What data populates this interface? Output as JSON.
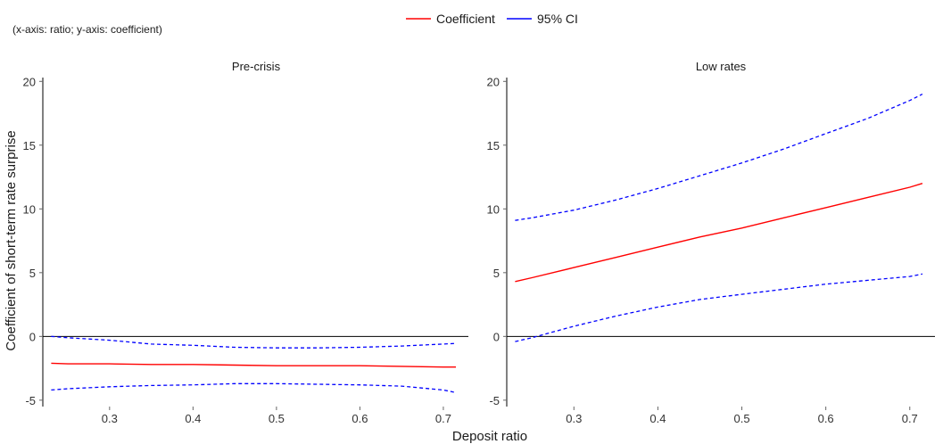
{
  "note": "(x-axis: ratio; y-axis: coefficient)",
  "colors": {
    "coefficient": "#ff0000",
    "ci": "#0000ff",
    "zero_line": "#000000"
  },
  "chart_data": {
    "type": "line",
    "xlabel": "Deposit ratio",
    "ylabel": "Coefficient of short-term rate surprise",
    "legend": {
      "placement": "top-center",
      "entries": [
        "Coefficient",
        "95% CI"
      ]
    },
    "x_ticks": [
      0.3,
      0.4,
      0.5,
      0.6,
      0.7
    ],
    "y_ticks": [
      -5,
      0,
      5,
      10,
      15,
      20
    ],
    "xlim": [
      0.22,
      0.73
    ],
    "ylim": [
      -5.5,
      20.3
    ],
    "grid": false,
    "reference_line_y": 0,
    "panels": [
      {
        "title": "Pre-crisis",
        "x": [
          0.23,
          0.25,
          0.3,
          0.35,
          0.4,
          0.45,
          0.5,
          0.55,
          0.6,
          0.65,
          0.7,
          0.715
        ],
        "series": [
          {
            "name": "Coefficient",
            "style": "solid",
            "values": [
              -2.1,
              -2.15,
              -2.15,
              -2.2,
              -2.2,
              -2.25,
              -2.3,
              -2.3,
              -2.3,
              -2.35,
              -2.4,
              -2.4
            ]
          },
          {
            "name": "95% CI",
            "style": "dashed",
            "values": [
              0.0,
              -0.1,
              -0.3,
              -0.6,
              -0.7,
              -0.85,
              -0.9,
              -0.9,
              -0.85,
              -0.75,
              -0.6,
              -0.55
            ]
          },
          {
            "name": "95% CI",
            "style": "dashed",
            "values": [
              -4.2,
              -4.1,
              -3.95,
              -3.85,
              -3.8,
              -3.7,
              -3.7,
              -3.75,
              -3.8,
              -3.9,
              -4.2,
              -4.4
            ]
          }
        ]
      },
      {
        "title": "Low rates",
        "x": [
          0.23,
          0.25,
          0.3,
          0.35,
          0.4,
          0.45,
          0.5,
          0.55,
          0.6,
          0.65,
          0.7,
          0.715
        ],
        "series": [
          {
            "name": "Coefficient",
            "style": "solid",
            "values": [
              4.3,
              4.6,
              5.4,
              6.2,
              7.0,
              7.8,
              8.5,
              9.3,
              10.1,
              10.9,
              11.7,
              12.0
            ]
          },
          {
            "name": "95% CI",
            "style": "dashed",
            "values": [
              9.1,
              9.3,
              9.9,
              10.7,
              11.6,
              12.6,
              13.6,
              14.7,
              15.9,
              17.1,
              18.5,
              19.0
            ]
          },
          {
            "name": "95% CI",
            "style": "dashed",
            "values": [
              -0.4,
              -0.1,
              0.8,
              1.6,
              2.3,
              2.9,
              3.3,
              3.7,
              4.1,
              4.4,
              4.7,
              4.9
            ]
          }
        ]
      }
    ]
  }
}
